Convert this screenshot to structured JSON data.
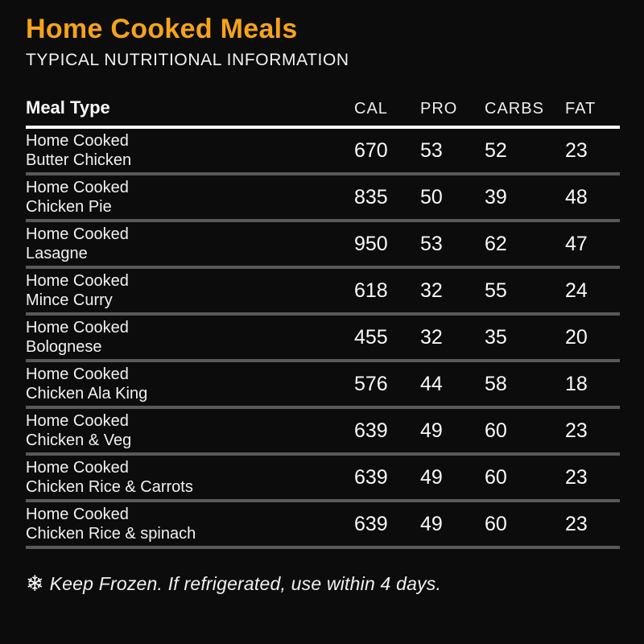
{
  "header": {
    "title": "Home Cooked Meals",
    "subtitle": "TYPICAL NUTRITIONAL INFORMATION"
  },
  "table": {
    "columns": {
      "meal": "Meal Type",
      "cal": "CAL",
      "pro": "PRO",
      "carbs": "CARBS",
      "fat": "FAT"
    },
    "rows": [
      {
        "name_line1": "Home Cooked",
        "name_line2": "Butter Chicken",
        "cal": "670",
        "pro": "53",
        "carbs": "52",
        "fat": "23"
      },
      {
        "name_line1": "Home Cooked",
        "name_line2": "Chicken Pie",
        "cal": "835",
        "pro": "50",
        "carbs": "39",
        "fat": "48"
      },
      {
        "name_line1": "Home Cooked",
        "name_line2": "Lasagne",
        "cal": "950",
        "pro": "53",
        "carbs": "62",
        "fat": "47"
      },
      {
        "name_line1": "Home Cooked",
        "name_line2": "Mince Curry",
        "cal": "618",
        "pro": "32",
        "carbs": "55",
        "fat": "24"
      },
      {
        "name_line1": "Home Cooked",
        "name_line2": "Bolognese",
        "cal": "455",
        "pro": "32",
        "carbs": "35",
        "fat": "20"
      },
      {
        "name_line1": "Home Cooked",
        "name_line2": "Chicken Ala King",
        "cal": "576",
        "pro": "44",
        "carbs": "58",
        "fat": "18"
      },
      {
        "name_line1": "Home Cooked",
        "name_line2": "Chicken & Veg",
        "cal": "639",
        "pro": "49",
        "carbs": "60",
        "fat": "23"
      },
      {
        "name_line1": "Home Cooked",
        "name_line2": "Chicken Rice & Carrots",
        "cal": "639",
        "pro": "49",
        "carbs": "60",
        "fat": "23"
      },
      {
        "name_line1": "Home Cooked",
        "name_line2": "Chicken Rice & spinach",
        "cal": "639",
        "pro": "49",
        "carbs": "60",
        "fat": "23"
      }
    ]
  },
  "footer": {
    "snowflake_glyph": "❄",
    "note": "Keep Frozen. If refrigerated, use within 4 days."
  },
  "colors": {
    "background": "#0C0C0C",
    "accent": "#F5A31A",
    "text": "#F2F2F2",
    "divider": "#595959",
    "header_rule": "#FFFFFF"
  }
}
